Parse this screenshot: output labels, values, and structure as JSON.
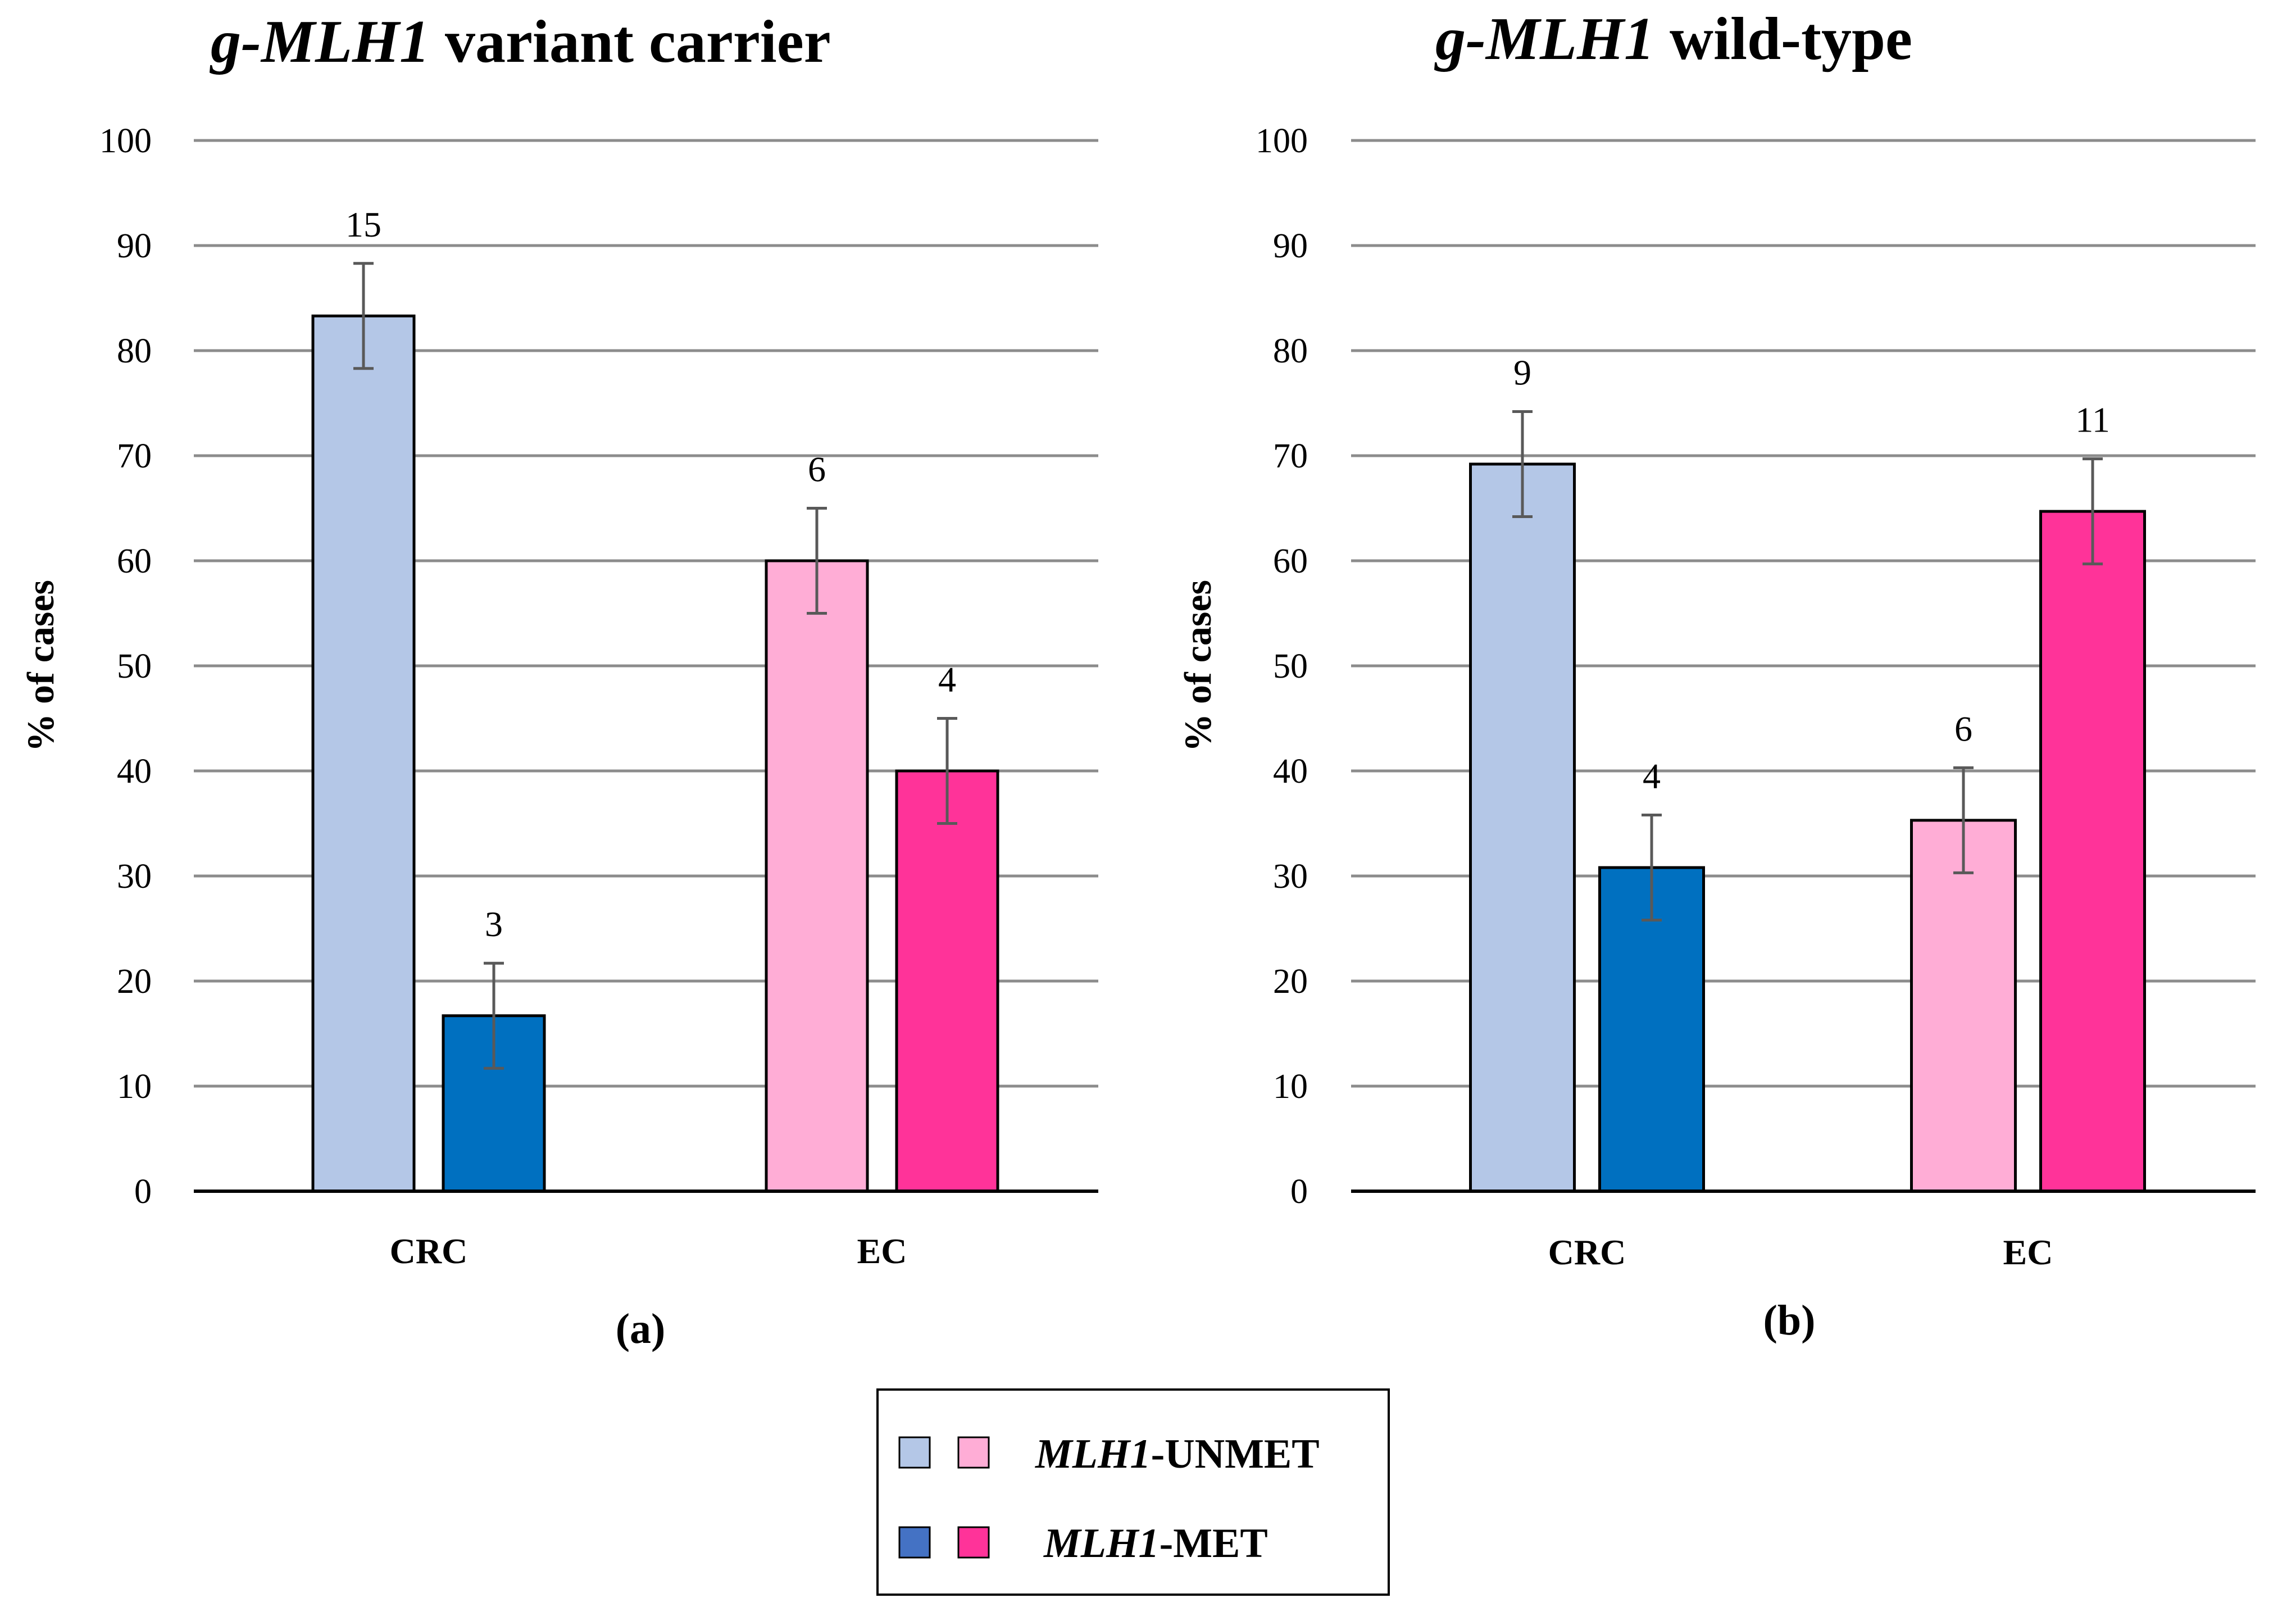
{
  "legend": {
    "unmet_label_italic": "MLH1",
    "unmet_label_rest": "-UNMET",
    "met_label_italic": "MLH1",
    "met_label_rest": "-MET",
    "colors": {
      "crc_unmet": "#b4c7e7",
      "crc_met": "#0070c0",
      "crc_met_legend": "#4472c4",
      "ec_unmet": "#ffadd6",
      "ec_met": "#ff3399"
    }
  },
  "chart_data": [
    {
      "type": "bar",
      "panel_label": "(a)",
      "title_italic": "g-MLH1",
      "title_rest": " variant carrier",
      "ylabel": "% of cases",
      "ylim": [
        0,
        100
      ],
      "yticks": [
        0,
        10,
        20,
        30,
        40,
        50,
        60,
        70,
        80,
        90,
        100
      ],
      "grid": true,
      "categories": [
        "CRC",
        "EC"
      ],
      "bars": [
        {
          "category": "CRC",
          "series": "MLH1-UNMET",
          "value": 83.3,
          "error": 5,
          "count_label": "15",
          "color_key": "crc_unmet"
        },
        {
          "category": "CRC",
          "series": "MLH1-MET",
          "value": 16.7,
          "error": 5,
          "count_label": "3",
          "color_key": "crc_met"
        },
        {
          "category": "EC",
          "series": "MLH1-UNMET",
          "value": 60,
          "error": 5,
          "count_label": "6",
          "color_key": "ec_unmet"
        },
        {
          "category": "EC",
          "series": "MLH1-MET",
          "value": 40,
          "error": 5,
          "count_label": "4",
          "color_key": "ec_met"
        }
      ]
    },
    {
      "type": "bar",
      "panel_label": "(b)",
      "title_italic": "g-MLH1",
      "title_rest": " wild-type",
      "ylabel": "% of cases",
      "ylim": [
        0,
        100
      ],
      "yticks": [
        0,
        10,
        20,
        30,
        40,
        50,
        60,
        70,
        80,
        90,
        100
      ],
      "grid": true,
      "categories": [
        "CRC",
        "EC"
      ],
      "bars": [
        {
          "category": "CRC",
          "series": "MLH1-UNMET",
          "value": 69.2,
          "error": 5,
          "count_label": "9",
          "color_key": "crc_unmet"
        },
        {
          "category": "CRC",
          "series": "MLH1-MET",
          "value": 30.8,
          "error": 5,
          "count_label": "4",
          "color_key": "crc_met"
        },
        {
          "category": "EC",
          "series": "MLH1-UNMET",
          "value": 35.3,
          "error": 5,
          "count_label": "6",
          "color_key": "ec_unmet"
        },
        {
          "category": "EC",
          "series": "MLH1-MET",
          "value": 64.7,
          "error": 5,
          "count_label": "11",
          "color_key": "ec_met"
        }
      ]
    }
  ]
}
